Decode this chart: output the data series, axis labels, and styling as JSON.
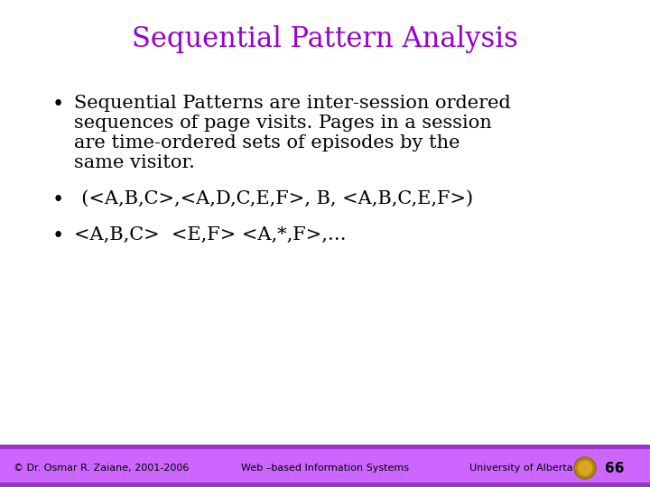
{
  "title": "Sequential Pattern Analysis",
  "title_color": "#9900CC",
  "title_fontsize": 22,
  "background_color": "#FFFFFF",
  "bullet1_lines": [
    "Sequential Patterns are inter-session ordered",
    "sequences of page visits. Pages in a session",
    "are time-ordered sets of episodes by the",
    "same visitor."
  ],
  "bullet2": "(<A,B,C>,<A,D,C,E,F>, B, <A,B,C,E,F>)",
  "bullet3": "<A,B,C>  <E,F> <A,*,F>,…",
  "footer_left": "© Dr. Osmar R. Zaiane, 2001-2006",
  "footer_center": "Web –based Information Systems",
  "footer_right": "University of Alberta",
  "footer_number": "66",
  "footer_bg": "#CC66FF",
  "footer_bar_top": "#9933CC",
  "footer_bar_bottom": "#9933CC",
  "body_fontsize": 15,
  "footer_fontsize": 8
}
